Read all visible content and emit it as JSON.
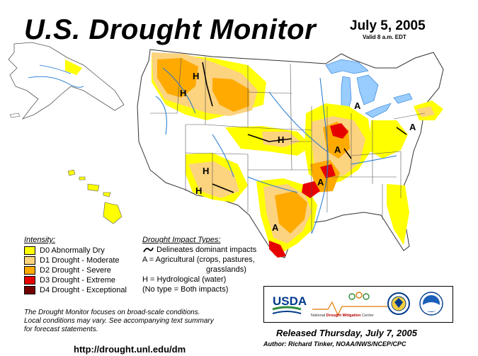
{
  "title": "U.S. Drought Monitor",
  "date": "July 5, 2005",
  "valid": "Valid 8 a.m. EDT",
  "colors": {
    "D0": "#ffff00",
    "D1": "#fcd37f",
    "D2": "#ffaa00",
    "D3": "#e60000",
    "D4": "#730000",
    "water": "#99ccff",
    "rivers": "#1a74d0"
  },
  "legend": {
    "heading": "Intensity:",
    "items": [
      {
        "key": "D0",
        "label": "D0 Abnormally Dry"
      },
      {
        "key": "D1",
        "label": "D1 Drought - Moderate"
      },
      {
        "key": "D2",
        "label": "D2 Drought - Severe"
      },
      {
        "key": "D3",
        "label": "D3 Drought - Extreme"
      },
      {
        "key": "D4",
        "label": "D4 Drought - Exceptional"
      }
    ]
  },
  "impacts": {
    "heading": "Drought Impact Types:",
    "lines": [
      "Delineates dominant impacts",
      "A = Agricultural (crops, pastures,",
      "grasslands)",
      "H = Hydrological (water)",
      "(No type = Both impacts)"
    ]
  },
  "map_labels": [
    "H",
    "H",
    "H",
    "H",
    "H",
    "A",
    "A",
    "A",
    "A",
    "A"
  ],
  "note": [
    "The Drought Monitor focuses on broad-scale conditions.",
    "Local conditions may vary.  See accompanying text summary",
    "for forecast statements."
  ],
  "url": "http://drought.unl.edu/dm",
  "logos": {
    "usda": "USDA",
    "ndmc_prefix": "National",
    "ndmc_bold": "Drought Mitigation",
    "ndmc_suffix": "Center",
    "icons": [
      "usda-logo-icon",
      "ndmc-logo-icon",
      "commerce-seal-icon",
      "noaa-logo-icon"
    ]
  },
  "released": "Released Thursday, July 7, 2005",
  "author": "Author:  Richard Tinker, NOAA/NWS/NCEP/CPC"
}
